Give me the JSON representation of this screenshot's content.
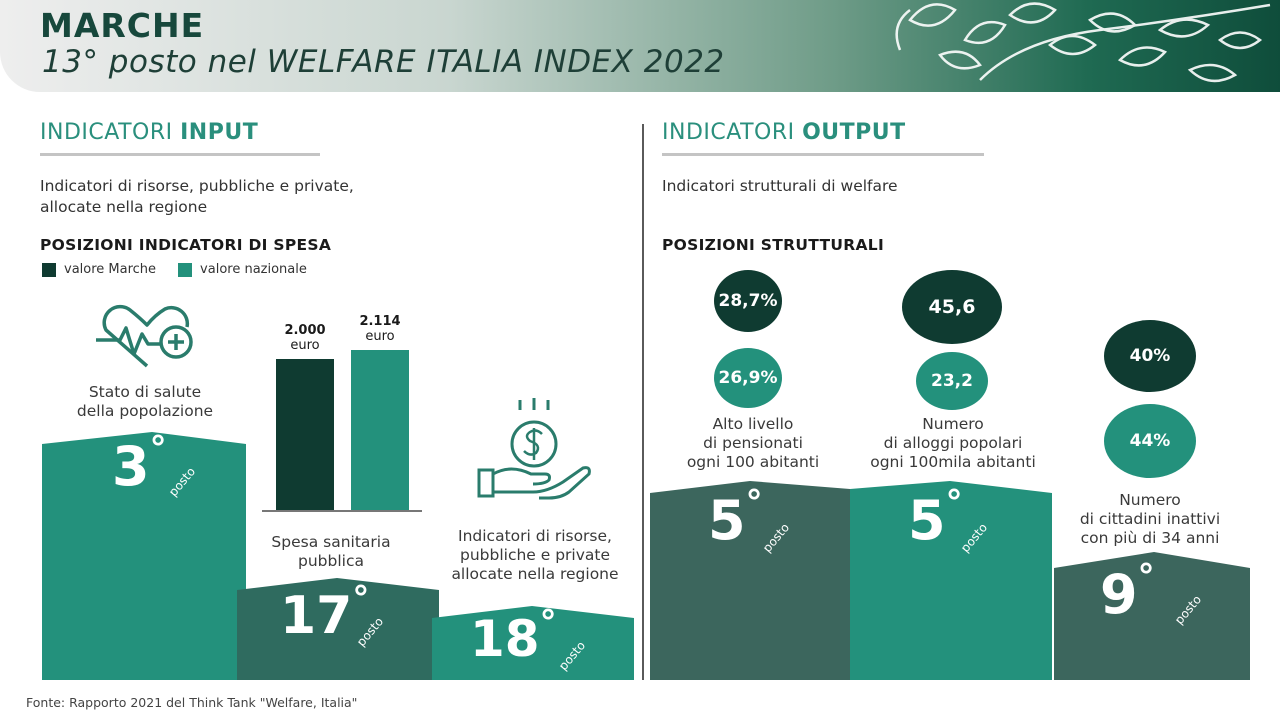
{
  "header": {
    "title": "MARCHE",
    "subtitle": "13° posto nel WELFARE ITALIA INDEX 2022"
  },
  "input": {
    "heading_light": "INDICATORI ",
    "heading_bold": "INPUT",
    "desc_line1": "Indicatori di risorse, pubbliche e private,",
    "desc_line2": "allocate nella regione",
    "subheading": "POSIZIONI INDICATORI DI SPESA",
    "legend": {
      "marche": "valore Marche",
      "nazionale": "valore nazionale"
    },
    "health": {
      "label_line1": "Stato di salute",
      "label_line2": "della popolazione",
      "rank": "3",
      "posto": "posto"
    },
    "spesa": {
      "marche_value": "2.000",
      "nazionale_value": "2.114",
      "unit": "euro",
      "marche_amount": 2000,
      "nazionale_amount": 2114,
      "label_line1": "Spesa sanitaria",
      "label_line2": "pubblica",
      "rank": "17",
      "posto": "posto"
    },
    "risorse": {
      "label_line1": "Indicatori di risorse,",
      "label_line2": "pubbliche e private",
      "label_line3": "allocate nella regione",
      "rank": "18",
      "posto": "posto"
    }
  },
  "output": {
    "heading_light": "INDICATORI ",
    "heading_bold": "OUTPUT",
    "desc": "Indicatori strutturali di welfare",
    "subheading": "POSIZIONI STRUTTURALI",
    "pensionati": {
      "marche_value": "28,7%",
      "nazionale_value": "26,9%",
      "label_line1": "Alto livello",
      "label_line2": "di pensionati",
      "label_line3": "ogni 100 abitanti",
      "rank": "5",
      "posto": "posto"
    },
    "alloggi": {
      "marche_value": "45,6",
      "nazionale_value": "23,2",
      "label_line1": "Numero",
      "label_line2": "di alloggi popolari",
      "label_line3": "ogni 100mila abitanti",
      "rank": "5",
      "posto": "posto"
    },
    "inattivi": {
      "marche_value": "40%",
      "nazionale_value": "44%",
      "label_line1": "Numero",
      "label_line2": "di cittadini inattivi",
      "label_line3": "con più di 34 anni",
      "rank": "9",
      "posto": "posto"
    }
  },
  "footer": "Fonte: Rapporto 2021 del Think Tank \"Welfare, Italia\"",
  "colors": {
    "marche": "#0f3b31",
    "nazionale": "#23917c",
    "block_dark": "#2f6b5f",
    "block_teal": "#23917c",
    "block_output": "#3c665d",
    "accent_text": "#2a8f7d"
  },
  "icons": [
    "heart-plus-icon",
    "hand-coin-icon",
    "leaves-decoration"
  ]
}
